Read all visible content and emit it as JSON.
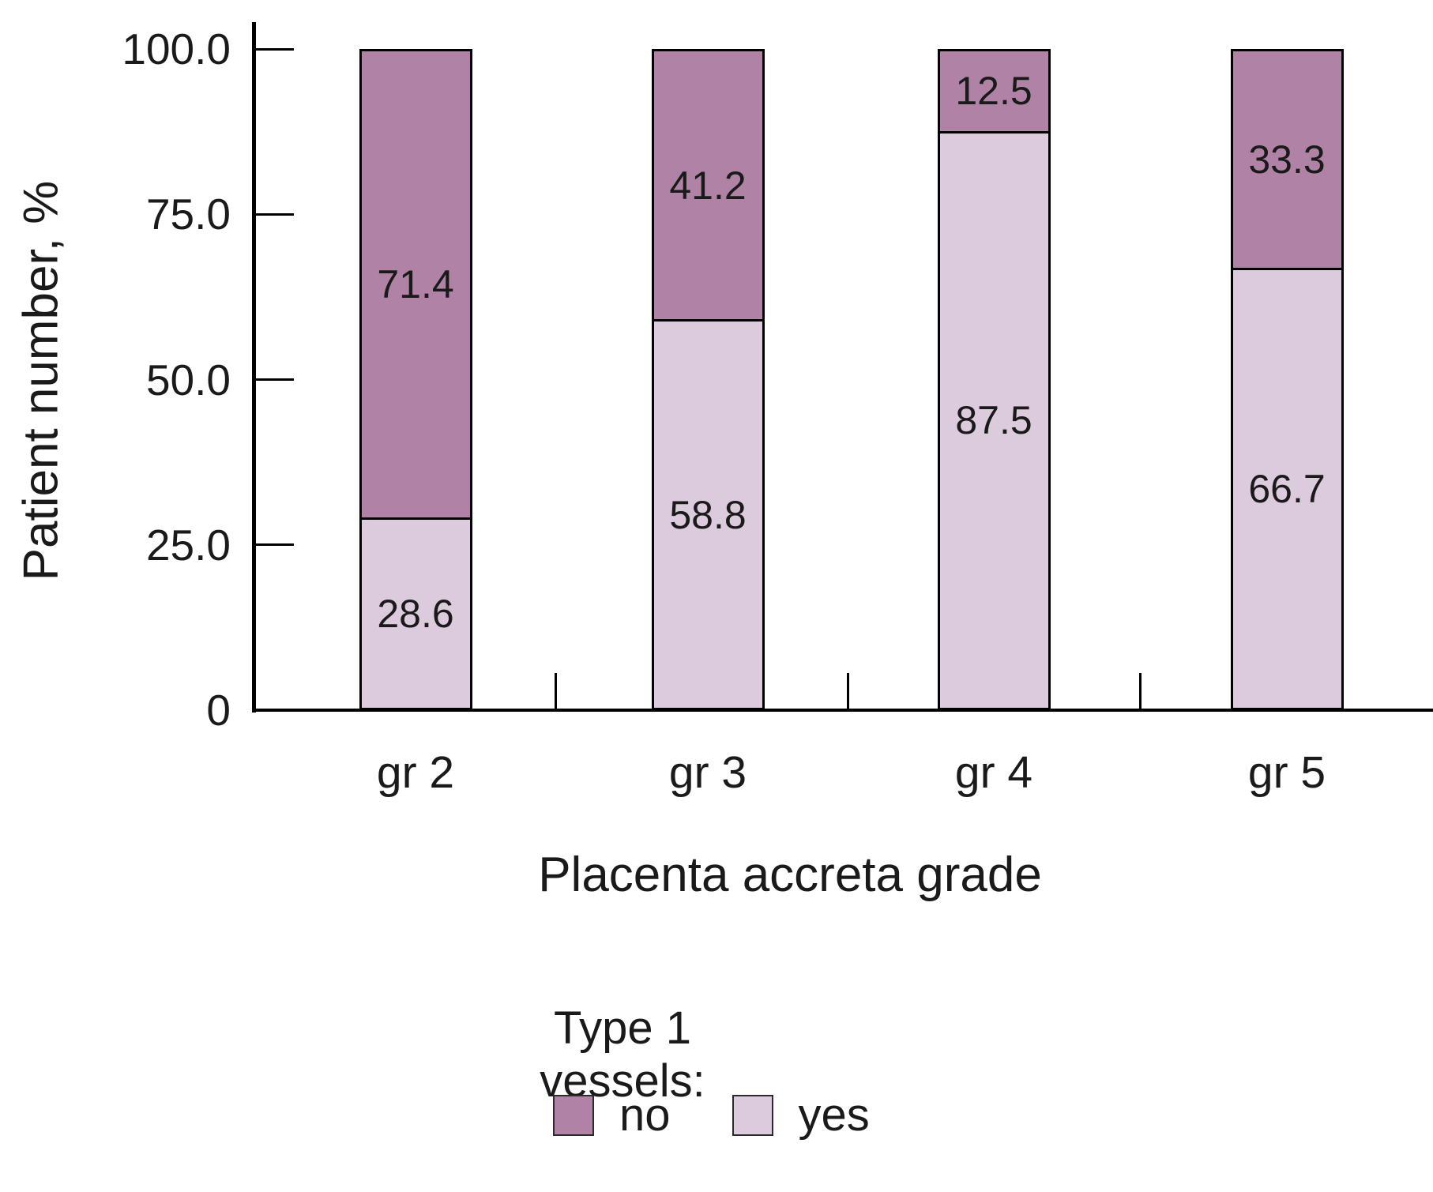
{
  "chart_data": {
    "type": "bar",
    "subtype": "stacked-percentage",
    "orientation": "vertical",
    "title": "",
    "xlabel": "Placenta accreta grade",
    "ylabel": "Patient number, %",
    "categories": [
      "gr 2",
      "gr 3",
      "gr 4",
      "gr 5"
    ],
    "series": [
      {
        "name": "no",
        "color": "#b083a6",
        "values": [
          71.4,
          41.2,
          12.5,
          33.3
        ]
      },
      {
        "name": "yes",
        "color": "#dccadd",
        "values": [
          28.6,
          58.8,
          87.5,
          66.7
        ]
      }
    ],
    "stack_order_bottom_to_top": [
      "yes",
      "no"
    ],
    "value_labels_shown": true,
    "ylim": [
      0,
      100
    ],
    "yticks": [
      {
        "value": 0,
        "label": "0"
      },
      {
        "value": 25,
        "label": "25.0"
      },
      {
        "value": 50,
        "label": "50.0"
      },
      {
        "value": 75,
        "label": "75.0"
      },
      {
        "value": 100,
        "label": "100.0"
      }
    ],
    "grid": false,
    "legend": {
      "title": "Type 1 vessels:",
      "position": "bottom",
      "items": [
        {
          "label": "no",
          "color": "#b083a6"
        },
        {
          "label": "yes",
          "color": "#dccadd"
        }
      ]
    },
    "colors": {
      "axis": "#000000",
      "text": "#1a1a1a",
      "background": "#ffffff"
    }
  }
}
